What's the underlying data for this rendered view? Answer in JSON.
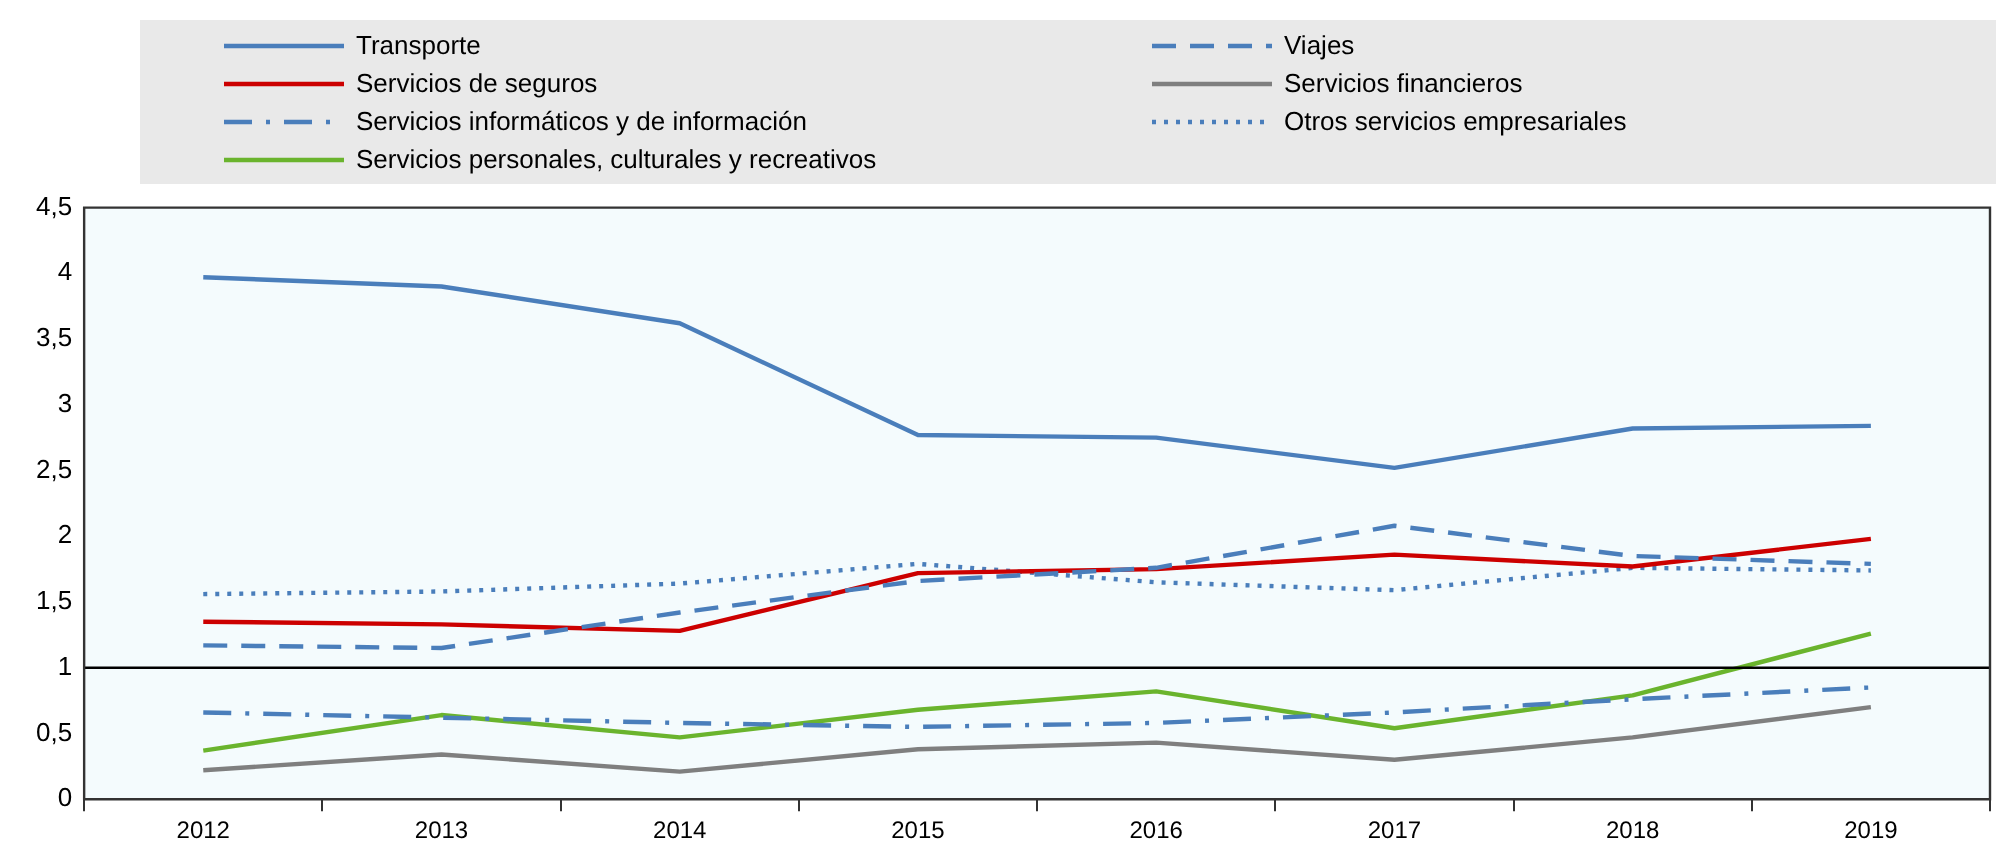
{
  "chart_data": {
    "type": "line",
    "categories": [
      "2012",
      "2013",
      "2014",
      "2015",
      "2016",
      "2017",
      "2018",
      "2019"
    ],
    "series": [
      {
        "name": "Transporte",
        "color": "#4a7ebb",
        "line_style": "solid",
        "values": [
          3.97,
          3.9,
          3.62,
          2.77,
          2.75,
          2.52,
          2.82,
          2.84
        ]
      },
      {
        "name": "Viajes",
        "color": "#4a7ebb",
        "line_style": "dashed",
        "values": [
          1.17,
          1.15,
          1.42,
          1.66,
          1.76,
          2.08,
          1.85,
          1.79
        ]
      },
      {
        "name": "Servicios de seguros",
        "color": "#cc0000",
        "line_style": "solid",
        "values": [
          1.35,
          1.33,
          1.28,
          1.72,
          1.75,
          1.86,
          1.77,
          1.98
        ]
      },
      {
        "name": "Servicios financieros",
        "color": "#7f7f7f",
        "line_style": "solid",
        "values": [
          0.22,
          0.34,
          0.21,
          0.38,
          0.43,
          0.3,
          0.47,
          0.7
        ]
      },
      {
        "name": "Servicios informáticos y de información",
        "color": "#4a7ebb",
        "line_style": "dashdot",
        "values": [
          0.66,
          0.62,
          0.58,
          0.55,
          0.58,
          0.66,
          0.76,
          0.85
        ]
      },
      {
        "name": "Otros servicios empresariales",
        "color": "#4a7ebb",
        "line_style": "dotted",
        "values": [
          1.56,
          1.58,
          1.64,
          1.79,
          1.65,
          1.59,
          1.76,
          1.74
        ]
      },
      {
        "name": "Servicios personales, culturales y recreativos",
        "color": "#6ab42d",
        "line_style": "solid",
        "values": [
          0.37,
          0.64,
          0.47,
          0.68,
          0.82,
          0.54,
          0.79,
          1.26
        ]
      }
    ],
    "ylim": [
      0,
      4.5
    ],
    "yticks": [
      0,
      {
        "value": 0.5,
        "label": "0,5"
      },
      1,
      {
        "value": 1.5,
        "label": "1,5"
      },
      2,
      {
        "value": 2.5,
        "label": "2,5"
      },
      3,
      {
        "value": 3.5,
        "label": "3,5"
      },
      4,
      {
        "value": 4.5,
        "label": "4,5"
      }
    ],
    "ref_lines": [
      {
        "axis": "y",
        "value": 1,
        "color": "#000000"
      }
    ],
    "grid": false,
    "legend": "top",
    "marker": "none"
  }
}
